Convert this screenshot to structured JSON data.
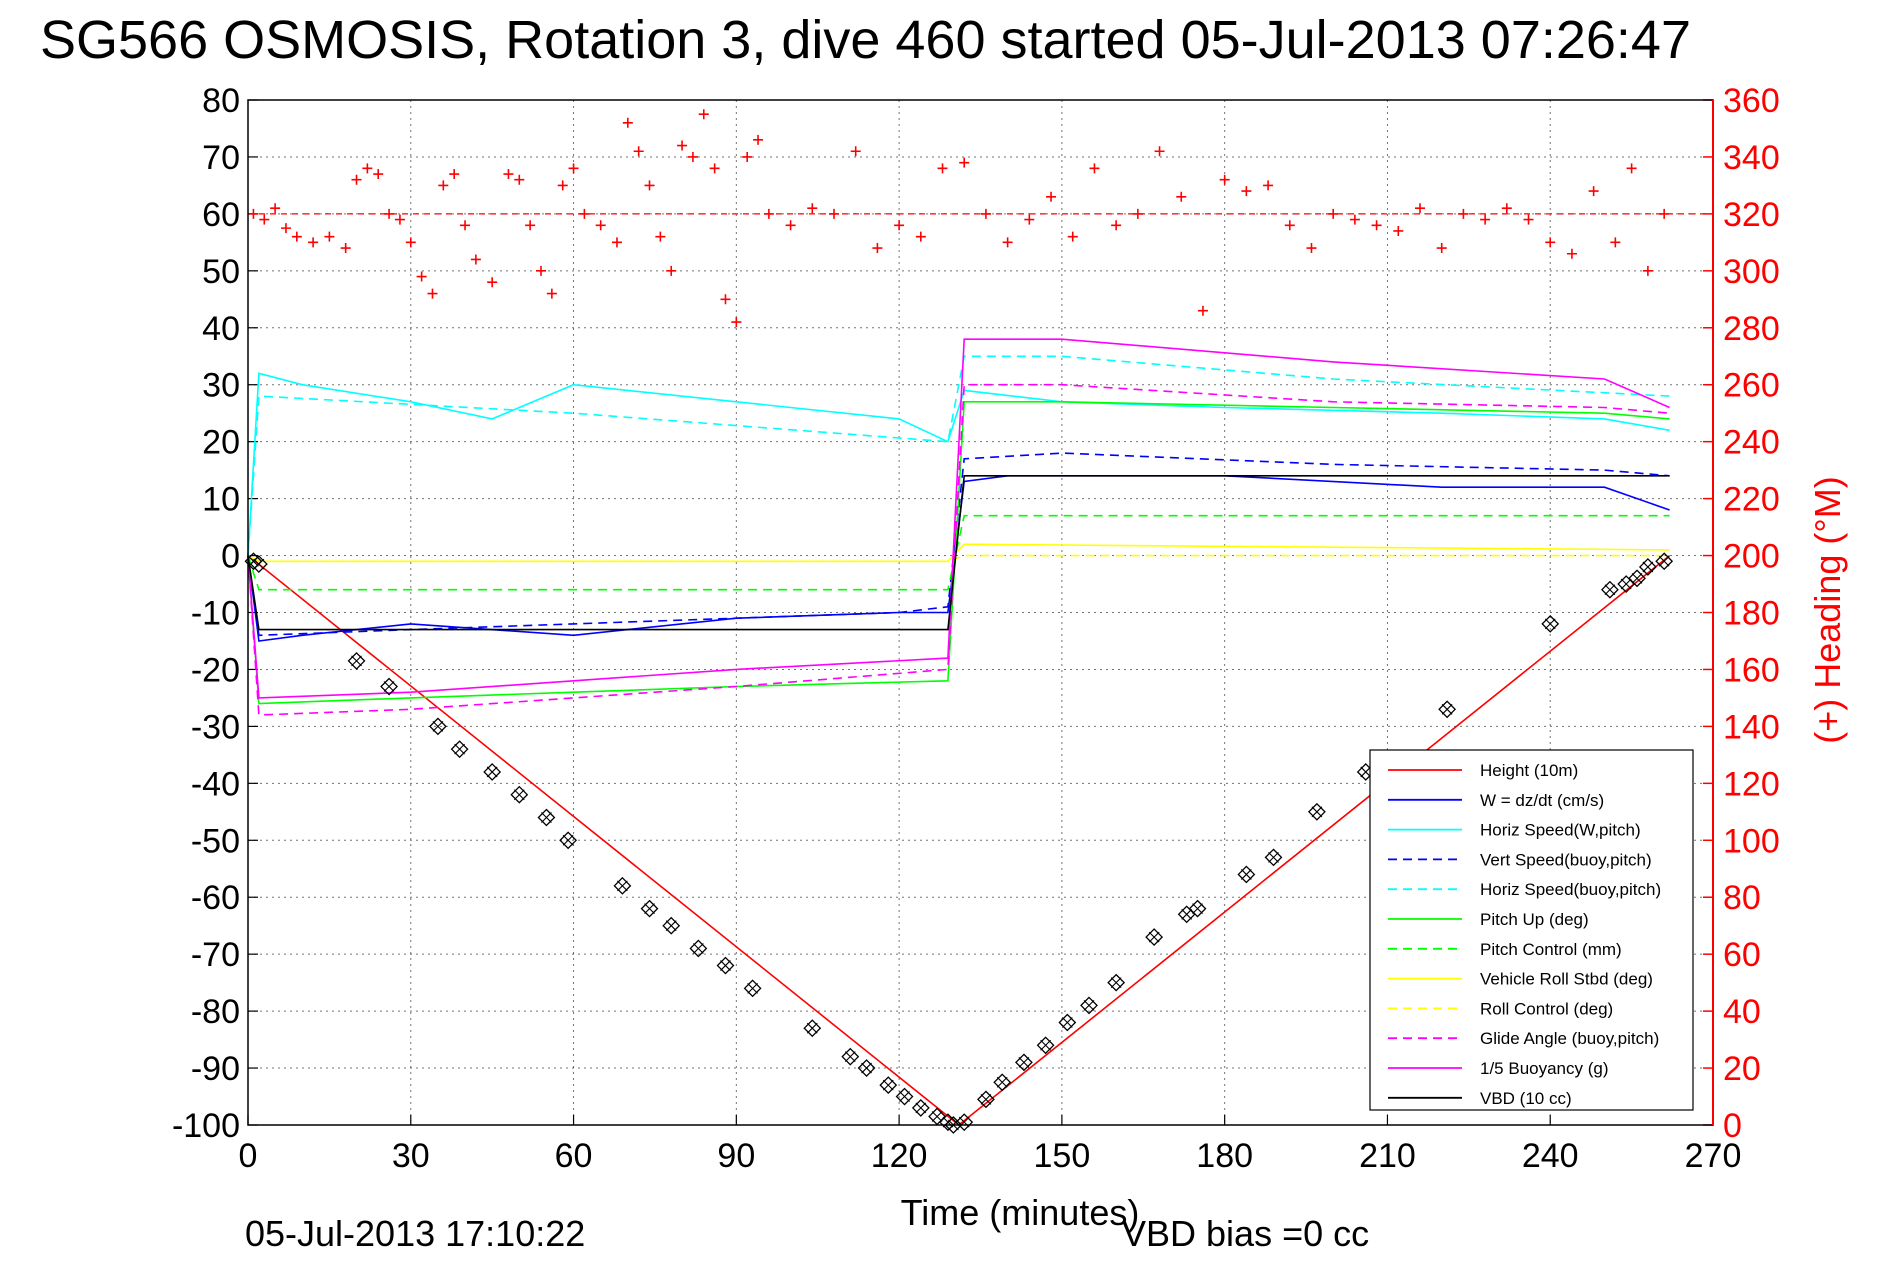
{
  "chart_data": {
    "type": "line",
    "title": "SG566 OSMOSIS, Rotation 3, dive 460 started 05-Jul-2013 07:26:47",
    "xlabel": "Time (minutes)",
    "ylabel": "",
    "ylabel_right": "(+) Heading (°M)",
    "xlim": [
      0,
      270
    ],
    "ylim": [
      -100,
      80
    ],
    "ylim_right": [
      0,
      360
    ],
    "x_ticks": [
      0,
      30,
      60,
      90,
      120,
      150,
      180,
      210,
      240,
      270
    ],
    "y_ticks": [
      -100,
      -90,
      -80,
      -70,
      -60,
      -50,
      -40,
      -30,
      -20,
      -10,
      0,
      10,
      20,
      30,
      40,
      50,
      60,
      70,
      80
    ],
    "y_ticks_right": [
      0,
      20,
      40,
      60,
      80,
      100,
      120,
      140,
      160,
      180,
      200,
      220,
      240,
      260,
      280,
      300,
      320,
      340,
      360
    ],
    "grid": true,
    "legend_position": "bottom-right",
    "footer_date": "05-Jul-2013 17:10:22",
    "footer_vbd": "VBD bias =0 cc",
    "series": [
      {
        "name": "Height (10m)",
        "color": "#ff0000",
        "dash": "solid",
        "x": [
          0,
          131,
          262
        ],
        "y": [
          0,
          -100,
          0
        ]
      },
      {
        "name": "W = dz/dt (cm/s)",
        "color": "#0000ff",
        "dash": "solid",
        "x": [
          0,
          2,
          10,
          30,
          60,
          90,
          120,
          129,
          132,
          140,
          180,
          220,
          250,
          262
        ],
        "y": [
          0,
          -15,
          -14,
          -12,
          -14,
          -11,
          -10,
          -10,
          13,
          14,
          14,
          12,
          12,
          8
        ]
      },
      {
        "name": "Horiz Speed(W,pitch)",
        "color": "#00ffff",
        "dash": "solid",
        "x": [
          0,
          2,
          10,
          30,
          45,
          60,
          90,
          120,
          129,
          132,
          150,
          180,
          220,
          250,
          262
        ],
        "y": [
          0,
          32,
          30,
          27,
          24,
          30,
          27,
          24,
          20,
          29,
          27,
          26,
          25,
          24,
          22
        ]
      },
      {
        "name": "Vert Speed(buoy,pitch)",
        "color": "#0000ff",
        "dash": "dashed",
        "x": [
          0,
          2,
          30,
          60,
          90,
          120,
          129,
          132,
          150,
          200,
          250,
          262
        ],
        "y": [
          0,
          -14,
          -13,
          -12,
          -11,
          -10,
          -9,
          17,
          18,
          16,
          15,
          14
        ]
      },
      {
        "name": "Horiz Speed(buoy,pitch)",
        "color": "#00ffff",
        "dash": "dashed",
        "x": [
          0,
          2,
          60,
          129,
          132,
          150,
          200,
          262
        ],
        "y": [
          0,
          28,
          25,
          20,
          35,
          35,
          31,
          28
        ]
      },
      {
        "name": "Pitch Up (deg)",
        "color": "#00ff00",
        "dash": "solid",
        "x": [
          0,
          2,
          30,
          60,
          90,
          129,
          132,
          150,
          200,
          250,
          262
        ],
        "y": [
          0,
          -26,
          -25,
          -24,
          -23,
          -22,
          27,
          27,
          26,
          25,
          24
        ]
      },
      {
        "name": "Pitch Control (mm)",
        "color": "#00ff00",
        "dash": "dashed",
        "x": [
          0,
          2,
          129,
          132,
          262
        ],
        "y": [
          0,
          -6,
          -6,
          7,
          7
        ]
      },
      {
        "name": "Vehicle Roll Stbd (deg)",
        "color": "#ffff00",
        "dash": "solid",
        "x": [
          0,
          2,
          129,
          132,
          262
        ],
        "y": [
          0,
          -1,
          -1,
          2,
          1
        ]
      },
      {
        "name": "Roll Control (deg)",
        "color": "#ffff00",
        "dash": "dashed",
        "x": [
          0,
          2,
          129,
          132,
          262
        ],
        "y": [
          0,
          -1,
          -1,
          0,
          0
        ]
      },
      {
        "name": "Glide Angle (buoy,pitch)",
        "color": "#ff00ff",
        "dash": "dashed",
        "x": [
          0,
          2,
          30,
          60,
          90,
          129,
          132,
          150,
          200,
          250,
          262
        ],
        "y": [
          0,
          -28,
          -27,
          -25,
          -23,
          -20,
          30,
          30,
          27,
          26,
          25
        ]
      },
      {
        "name": "1/5 Buoyancy (g)",
        "color": "#ff00ff",
        "dash": "solid",
        "x": [
          0,
          2,
          30,
          60,
          90,
          129,
          132,
          150,
          200,
          250,
          262
        ],
        "y": [
          0,
          -25,
          -24,
          -22,
          -20,
          -18,
          38,
          38,
          34,
          31,
          26
        ]
      },
      {
        "name": "VBD (10 cc)",
        "color": "#000000",
        "dash": "solid",
        "x": [
          0,
          2,
          129,
          132,
          262
        ],
        "y": [
          0,
          -13,
          -13,
          14,
          14
        ]
      }
    ],
    "heading_series": {
      "name": "(+) Heading",
      "color": "#ff0000",
      "marker": "+",
      "mean": 320,
      "x": [
        1,
        3,
        5,
        7,
        9,
        12,
        15,
        18,
        20,
        22,
        24,
        26,
        28,
        30,
        32,
        34,
        36,
        38,
        40,
        42,
        45,
        48,
        50,
        52,
        54,
        56,
        58,
        60,
        62,
        65,
        68,
        70,
        72,
        74,
        76,
        78,
        80,
        82,
        84,
        86,
        88,
        90,
        92,
        94,
        96,
        100,
        104,
        108,
        112,
        116,
        120,
        124,
        128,
        132,
        136,
        140,
        144,
        148,
        152,
        156,
        160,
        164,
        168,
        172,
        176,
        180,
        184,
        188,
        192,
        196,
        200,
        204,
        208,
        212,
        216,
        220,
        224,
        228,
        232,
        236,
        240,
        244,
        248,
        252,
        255,
        258,
        261
      ],
      "y": [
        320,
        318,
        322,
        315,
        312,
        310,
        312,
        308,
        332,
        336,
        334,
        320,
        318,
        310,
        298,
        292,
        330,
        334,
        316,
        304,
        296,
        334,
        332,
        316,
        300,
        292,
        330,
        336,
        320,
        316,
        310,
        352,
        342,
        330,
        312,
        300,
        344,
        340,
        355,
        336,
        290,
        282,
        340,
        346,
        320,
        316,
        322,
        320,
        342,
        308,
        316,
        312,
        336,
        338,
        320,
        310,
        318,
        326,
        312,
        336,
        316,
        320,
        342,
        326,
        286,
        332,
        328,
        330,
        316,
        308,
        320,
        318,
        316,
        314,
        322,
        308,
        320,
        318,
        322,
        318,
        310,
        306,
        328,
        310,
        336,
        300,
        320
      ]
    },
    "waypoint_markers": {
      "marker": "diamond-x",
      "color": "#000000",
      "x": [
        1,
        2,
        20,
        26,
        35,
        39,
        45,
        50,
        55,
        59,
        69,
        74,
        78,
        83,
        88,
        93,
        104,
        111,
        114,
        118,
        121,
        124,
        127,
        129,
        130,
        132,
        136,
        139,
        143,
        147,
        151,
        155,
        160,
        167,
        173,
        175,
        184,
        189,
        197,
        206,
        221,
        240,
        251,
        254,
        256,
        258,
        261
      ],
      "y": [
        -1,
        -1.5,
        -18.5,
        -23,
        -30,
        -34,
        -38,
        -42,
        -46,
        -50,
        -58,
        -62,
        -65,
        -69,
        -72,
        -76,
        -83,
        -88,
        -90,
        -93,
        -95,
        -97,
        -98.5,
        -99.5,
        -100,
        -99.5,
        -95.5,
        -92.5,
        -89,
        -86,
        -82,
        -79,
        -75,
        -67,
        -63,
        -62,
        -56,
        -53,
        -45,
        -38,
        -27,
        -12,
        -6,
        -5,
        -4,
        -2,
        -1
      ]
    }
  }
}
